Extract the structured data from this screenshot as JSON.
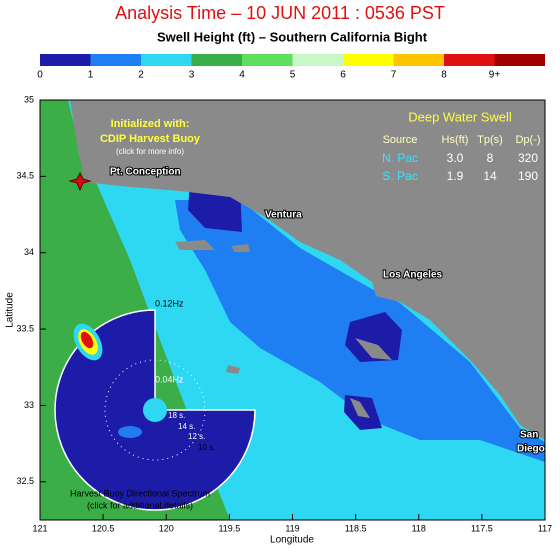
{
  "header": {
    "title": "Analysis Time –  10 JUN 2011 : 0536 PST",
    "subtitle": "Swell Height (ft) – Southern California Bight"
  },
  "colorbar": {
    "ticks": [
      0,
      1,
      2,
      3,
      4,
      5,
      6,
      7,
      8,
      {
        "value": 9,
        "label": "9+"
      }
    ],
    "lim": [
      0,
      10
    ],
    "colors": [
      "#1c1ca8",
      "#1f7ff2",
      "#2fd8f2",
      "#3cae48",
      "#5ee05e",
      "#c8f7c8",
      "#ffff00",
      "#ffc400",
      "#e01010",
      "#a00000"
    ]
  },
  "map": {
    "xlabel": "Longitude",
    "ylabel": "Latitude",
    "xlim": [
      121,
      117
    ],
    "ylim": [
      32.25,
      35
    ],
    "xticks": [
      121,
      120.5,
      120,
      119.5,
      119,
      118.5,
      118,
      117.5,
      117
    ],
    "yticks": [
      35,
      34.5,
      34,
      33.5,
      33,
      32.5
    ],
    "places": [
      "Pt. Conception",
      "Ventura",
      "Los Angeles",
      "San",
      "Diego"
    ]
  },
  "buoy": {
    "line1": "Initialized with:",
    "line2": "CDIP Harvest Buoy",
    "line3": "(click for more info)"
  },
  "swell_table": {
    "title": "Deep Water Swell",
    "header": [
      "Source",
      "Hs(ft)",
      "Tp(s)",
      "Dp(-)"
    ],
    "rows": [
      [
        "N. Pac",
        "3.0",
        "8",
        "320"
      ],
      [
        "S. Pac",
        "1.9",
        "14",
        "190"
      ]
    ]
  },
  "spectrum": {
    "outer": "0.12Hz",
    "inner": "0.04Hz",
    "periods": [
      "18 s.",
      "14 s.",
      "12 s.",
      "10 s."
    ],
    "caption1": "Harvest Buoy Directional Spectrum",
    "caption2": "(click for additional details)"
  }
}
